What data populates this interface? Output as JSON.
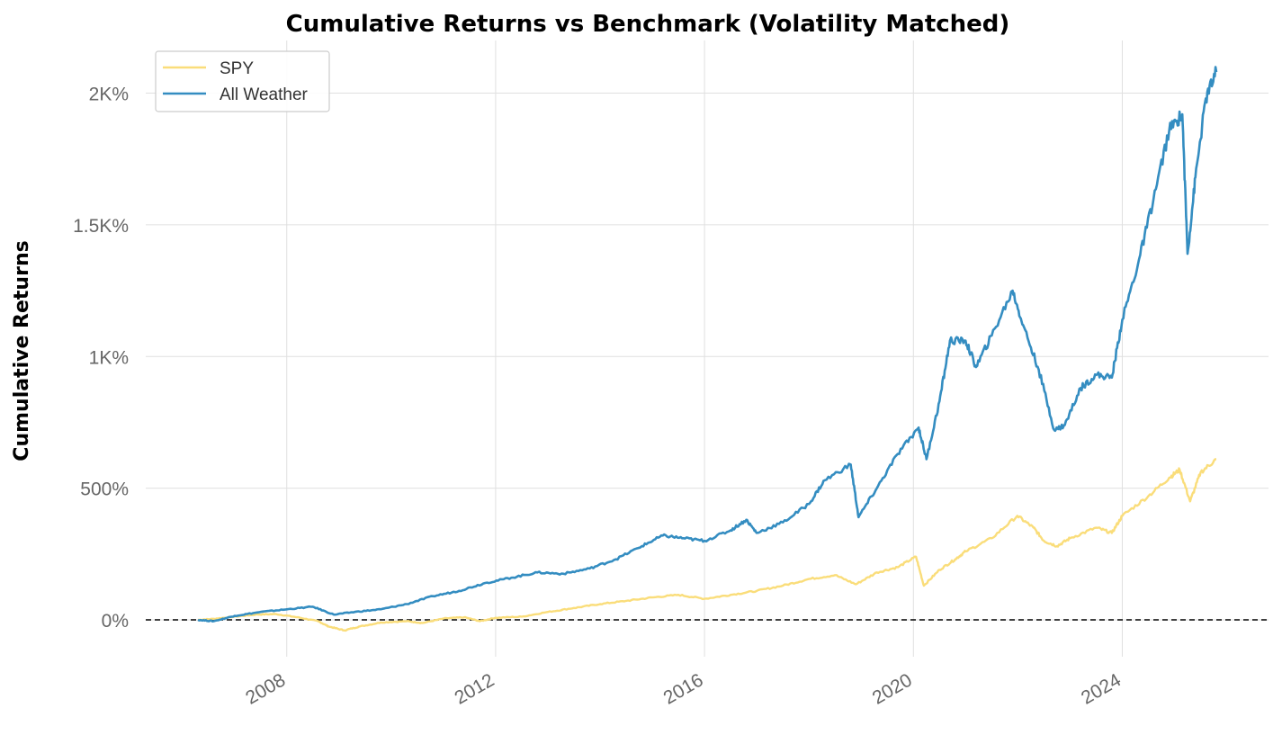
{
  "chart_data": {
    "type": "line",
    "title": "Cumulative Returns vs Benchmark (Volatility Matched)",
    "ylabel": "Cumulative Returns",
    "xlabel": "",
    "xlim": [
      2005.3,
      2026.8
    ],
    "ylim": [
      -1.4,
      22.0
    ],
    "grid": true,
    "legend_position": "top-left",
    "baseline": 0,
    "x_ticks": [
      {
        "value": 2008,
        "label": "2008"
      },
      {
        "value": 2012,
        "label": "2012"
      },
      {
        "value": 2016,
        "label": "2016"
      },
      {
        "value": 2020,
        "label": "2020"
      },
      {
        "value": 2024,
        "label": "2024"
      }
    ],
    "y_ticks": [
      {
        "value": 0,
        "label": "0%"
      },
      {
        "value": 5,
        "label": "500%"
      },
      {
        "value": 10,
        "label": "1K%"
      },
      {
        "value": 15,
        "label": "1.5K%"
      },
      {
        "value": 20,
        "label": "2K%"
      }
    ],
    "series": [
      {
        "name": "SPY",
        "color": "#fadd7a",
        "points": [
          [
            2006.3,
            0.0
          ],
          [
            2006.6,
            0.04
          ],
          [
            2007.0,
            0.12
          ],
          [
            2007.4,
            0.2
          ],
          [
            2007.8,
            0.22
          ],
          [
            2008.2,
            0.1
          ],
          [
            2008.6,
            -0.05
          ],
          [
            2008.8,
            -0.25
          ],
          [
            2009.1,
            -0.4
          ],
          [
            2009.4,
            -0.25
          ],
          [
            2009.8,
            -0.1
          ],
          [
            2010.3,
            -0.05
          ],
          [
            2010.6,
            -0.12
          ],
          [
            2011.0,
            0.05
          ],
          [
            2011.4,
            0.1
          ],
          [
            2011.7,
            -0.05
          ],
          [
            2012.0,
            0.08
          ],
          [
            2012.5,
            0.12
          ],
          [
            2013.0,
            0.3
          ],
          [
            2013.5,
            0.45
          ],
          [
            2014.0,
            0.6
          ],
          [
            2014.5,
            0.72
          ],
          [
            2015.0,
            0.85
          ],
          [
            2015.5,
            0.95
          ],
          [
            2016.0,
            0.8
          ],
          [
            2016.5,
            0.95
          ],
          [
            2017.0,
            1.1
          ],
          [
            2017.5,
            1.3
          ],
          [
            2018.0,
            1.55
          ],
          [
            2018.5,
            1.7
          ],
          [
            2018.9,
            1.35
          ],
          [
            2019.3,
            1.8
          ],
          [
            2019.7,
            2.0
          ],
          [
            2020.05,
            2.4
          ],
          [
            2020.2,
            1.3
          ],
          [
            2020.5,
            1.9
          ],
          [
            2020.8,
            2.3
          ],
          [
            2021.0,
            2.6
          ],
          [
            2021.5,
            3.1
          ],
          [
            2021.99,
            3.95
          ],
          [
            2022.3,
            3.5
          ],
          [
            2022.5,
            3.0
          ],
          [
            2022.75,
            2.8
          ],
          [
            2023.0,
            3.1
          ],
          [
            2023.5,
            3.5
          ],
          [
            2023.8,
            3.3
          ],
          [
            2024.0,
            3.95
          ],
          [
            2024.5,
            4.7
          ],
          [
            2024.9,
            5.4
          ],
          [
            2025.1,
            5.7
          ],
          [
            2025.3,
            4.5
          ],
          [
            2025.5,
            5.6
          ],
          [
            2025.8,
            6.1
          ]
        ]
      },
      {
        "name": "All Weather",
        "color": "#348dc1",
        "points": [
          [
            2006.3,
            0.0
          ],
          [
            2006.6,
            -0.05
          ],
          [
            2007.0,
            0.15
          ],
          [
            2007.5,
            0.3
          ],
          [
            2008.0,
            0.4
          ],
          [
            2008.5,
            0.5
          ],
          [
            2008.9,
            0.2
          ],
          [
            2009.3,
            0.3
          ],
          [
            2009.8,
            0.4
          ],
          [
            2010.3,
            0.6
          ],
          [
            2010.8,
            0.9
          ],
          [
            2011.3,
            1.1
          ],
          [
            2011.8,
            1.4
          ],
          [
            2012.3,
            1.6
          ],
          [
            2012.8,
            1.8
          ],
          [
            2013.3,
            1.75
          ],
          [
            2013.8,
            1.95
          ],
          [
            2014.3,
            2.3
          ],
          [
            2014.8,
            2.8
          ],
          [
            2015.2,
            3.2
          ],
          [
            2015.6,
            3.1
          ],
          [
            2016.0,
            3.0
          ],
          [
            2016.5,
            3.4
          ],
          [
            2016.8,
            3.8
          ],
          [
            2017.0,
            3.3
          ],
          [
            2017.5,
            3.7
          ],
          [
            2018.0,
            4.4
          ],
          [
            2018.3,
            5.3
          ],
          [
            2018.8,
            5.9
          ],
          [
            2018.95,
            3.9
          ],
          [
            2019.3,
            5.0
          ],
          [
            2019.7,
            6.3
          ],
          [
            2020.1,
            7.3
          ],
          [
            2020.25,
            6.1
          ],
          [
            2020.5,
            8.3
          ],
          [
            2020.7,
            10.6
          ],
          [
            2021.0,
            10.6
          ],
          [
            2021.2,
            9.6
          ],
          [
            2021.5,
            10.8
          ],
          [
            2021.9,
            12.5
          ],
          [
            2022.1,
            11.2
          ],
          [
            2022.4,
            9.5
          ],
          [
            2022.7,
            7.2
          ],
          [
            2022.9,
            7.4
          ],
          [
            2023.2,
            8.8
          ],
          [
            2023.5,
            9.3
          ],
          [
            2023.8,
            9.2
          ],
          [
            2024.0,
            11.4
          ],
          [
            2024.3,
            13.5
          ],
          [
            2024.6,
            16.0
          ],
          [
            2024.9,
            18.6
          ],
          [
            2025.15,
            19.2
          ],
          [
            2025.25,
            13.9
          ],
          [
            2025.4,
            16.8
          ],
          [
            2025.6,
            19.8
          ],
          [
            2025.8,
            20.8
          ]
        ]
      }
    ]
  }
}
